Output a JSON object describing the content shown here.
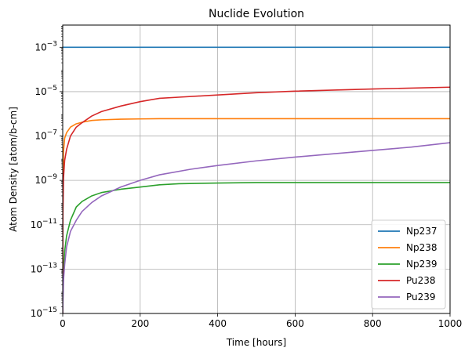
{
  "chart_data": {
    "type": "line",
    "title": "Nuclide Evolution",
    "xlabel": "Time [hours]",
    "ylabel": "Atom Density [atom/b-cm]",
    "xlim": [
      0,
      1000
    ],
    "ylim_log10": [
      -15,
      -2
    ],
    "y_scale": "log",
    "grid": true,
    "legend_position": "lower-right",
    "x_ticks": [
      0,
      200,
      400,
      600,
      800,
      1000
    ],
    "x_tick_labels": [
      "0",
      "200",
      "400",
      "600",
      "800",
      "1000"
    ],
    "y_ticks_log10": [
      -15,
      -13,
      -11,
      -9,
      -7,
      -5,
      -3
    ],
    "y_tick_labels": [
      {
        "base": "10",
        "exp": "−15"
      },
      {
        "base": "10",
        "exp": "−13"
      },
      {
        "base": "10",
        "exp": "−11"
      },
      {
        "base": "10",
        "exp": "−9"
      },
      {
        "base": "10",
        "exp": "−7"
      },
      {
        "base": "10",
        "exp": "−5"
      },
      {
        "base": "10",
        "exp": "−3"
      }
    ],
    "series": [
      {
        "name": "Np237",
        "color": "#1f77b4",
        "x": [
          0,
          1000
        ],
        "y_log10": [
          -3.0,
          -3.0
        ]
      },
      {
        "name": "Np238",
        "color": "#ff7f0e",
        "x": [
          0,
          0.5,
          2,
          5,
          10,
          20,
          35,
          50,
          75,
          100,
          150,
          200,
          250,
          300,
          400,
          500,
          600,
          800,
          1000
        ],
        "y_log10": [
          -15,
          -9.0,
          -7.7,
          -7.1,
          -6.85,
          -6.6,
          -6.45,
          -6.38,
          -6.3,
          -6.27,
          -6.24,
          -6.23,
          -6.22,
          -6.22,
          -6.22,
          -6.22,
          -6.22,
          -6.22,
          -6.22
        ]
      },
      {
        "name": "Np239",
        "color": "#2ca02c",
        "x": [
          0,
          0.5,
          2,
          5,
          10,
          20,
          35,
          50,
          75,
          100,
          150,
          200,
          250,
          300,
          400,
          500,
          600,
          800,
          1000
        ],
        "y_log10": [
          -15,
          -14.2,
          -13.2,
          -12.2,
          -11.5,
          -10.8,
          -10.2,
          -9.95,
          -9.7,
          -9.55,
          -9.4,
          -9.3,
          -9.2,
          -9.15,
          -9.12,
          -9.1,
          -9.1,
          -9.1,
          -9.1
        ]
      },
      {
        "name": "Pu238",
        "color": "#d62728",
        "x": [
          0,
          0.5,
          2,
          5,
          10,
          20,
          35,
          50,
          75,
          100,
          150,
          200,
          250,
          300,
          400,
          500,
          600,
          800,
          1000
        ],
        "y_log10": [
          -15,
          -10.5,
          -8.9,
          -8.1,
          -7.6,
          -7.0,
          -6.6,
          -6.4,
          -6.1,
          -5.9,
          -5.65,
          -5.45,
          -5.3,
          -5.25,
          -5.15,
          -5.05,
          -4.98,
          -4.88,
          -4.8
        ]
      },
      {
        "name": "Pu239",
        "color": "#9467bd",
        "x": [
          0,
          0.5,
          2,
          5,
          10,
          20,
          35,
          50,
          75,
          100,
          150,
          200,
          250,
          330,
          400,
          500,
          600,
          700,
          800,
          900,
          1000
        ],
        "y_log10": [
          -15,
          -14.5,
          -13.5,
          -12.8,
          -12.0,
          -11.3,
          -10.8,
          -10.4,
          -10.0,
          -9.7,
          -9.3,
          -9.0,
          -8.75,
          -8.5,
          -8.33,
          -8.12,
          -7.95,
          -7.8,
          -7.65,
          -7.5,
          -7.3
        ]
      }
    ]
  }
}
